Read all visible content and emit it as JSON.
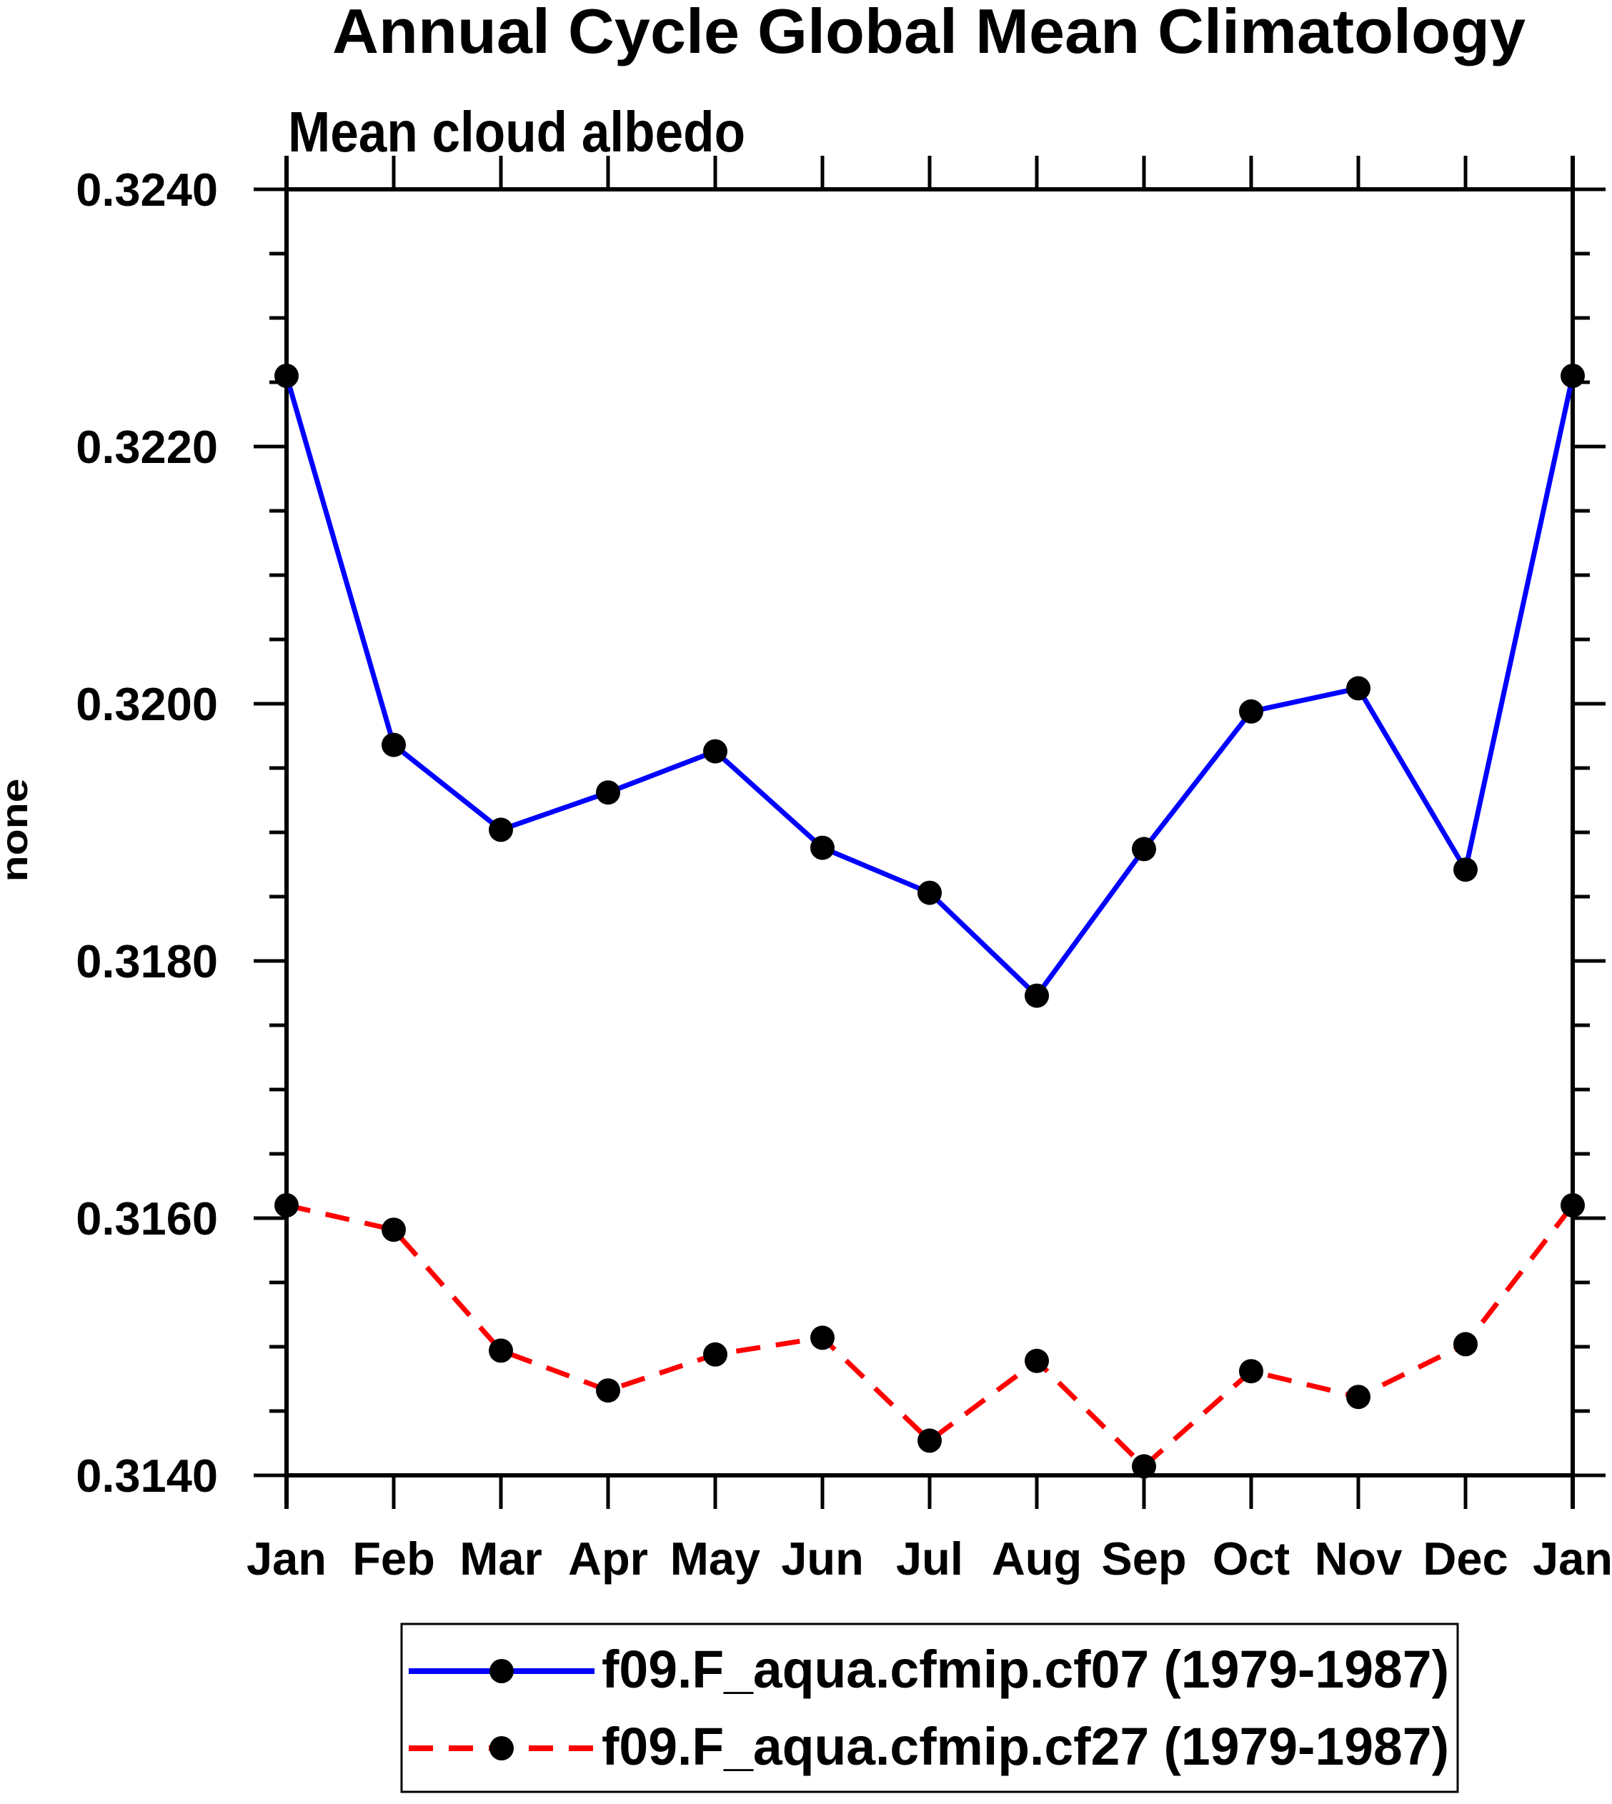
{
  "page": {
    "background": "#ffffff"
  },
  "chart_data": {
    "type": "line",
    "title": "Annual Cycle Global Mean Climatology",
    "subtitle": "Mean cloud albedo",
    "ylabel": "none",
    "categories": [
      "Jan",
      "Feb",
      "Mar",
      "Apr",
      "May",
      "Jun",
      "Jul",
      "Aug",
      "Sep",
      "Oct",
      "Nov",
      "Dec",
      "Jan"
    ],
    "y_axis": {
      "min": 0.314,
      "max": 0.324,
      "major_step": 0.002,
      "minor_step": 0.0005,
      "tick_labels": [
        "0.3140",
        "0.3160",
        "0.3180",
        "0.3200",
        "0.3220",
        "0.3240"
      ]
    },
    "grid": false,
    "legend_position": "bottom",
    "axis_color": "#000000",
    "series": [
      {
        "name": "f09.F_aqua.cfmip.cf07 (1979-1987)",
        "color": "#0000ff",
        "line_style": "solid",
        "marker": "circle",
        "marker_color": "#000000",
        "values": [
          0.32255,
          0.31968,
          0.31902,
          0.31931,
          0.31963,
          0.31888,
          0.31853,
          0.31773,
          0.31887,
          0.31994,
          0.32012,
          0.31871,
          0.32255
        ]
      },
      {
        "name": "f09.F_aqua.cfmip.cf27 (1979-1987)",
        "color": "#ff0000",
        "line_style": "dashed",
        "marker": "circle",
        "marker_color": "#000000",
        "values": [
          0.3161,
          0.31591,
          0.31497,
          0.31466,
          0.31494,
          0.31507,
          0.31427,
          0.31489,
          0.31407,
          0.31481,
          0.31461,
          0.31502,
          0.3161
        ]
      }
    ]
  }
}
